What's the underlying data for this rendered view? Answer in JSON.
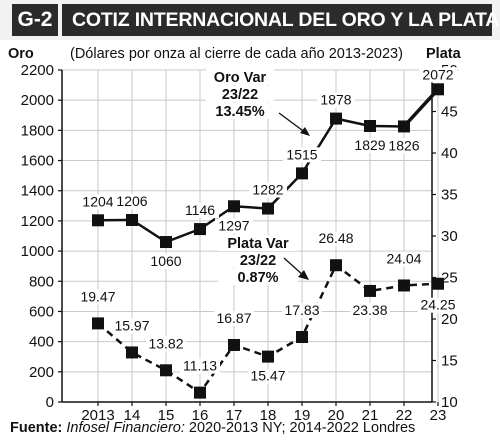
{
  "figure_id": "G-2",
  "title": "COTIZ INTERNACIONAL DEL ORO Y LA PLATA",
  "left_axis_title": "Oro",
  "subtitle": "(Dólares por onza al cierre de cada año 2013-2023)",
  "right_axis_title": "Plata",
  "source_label": "Fuente:",
  "source_publication": "Infosel Financiero:",
  "source_text": " 2020-2013 NY; 2014-2022 Londres",
  "chart_data": {
    "type": "line",
    "title": "COTIZ INTERNACIONAL DEL ORO Y LA PLATA",
    "categories": [
      "2013",
      "14",
      "15",
      "16",
      "17",
      "18",
      "19",
      "20",
      "21",
      "22",
      "23"
    ],
    "y_left": {
      "label": "Oro",
      "ylim": [
        0,
        2200
      ],
      "ticks": [
        0,
        200,
        400,
        600,
        800,
        1000,
        1200,
        1400,
        1600,
        1800,
        2000,
        2200
      ]
    },
    "y_right": {
      "label": "Plata",
      "ylim": [
        10,
        50
      ],
      "ticks": [
        10,
        15,
        20,
        25,
        30,
        35,
        40,
        45,
        50
      ]
    },
    "grid": true,
    "series": [
      {
        "name": "Oro",
        "axis": "left",
        "line_style": "solid",
        "values": [
          1204,
          1206,
          1060,
          1146,
          1297,
          1282,
          1515,
          1878,
          1829,
          1826,
          2072
        ],
        "labels": [
          "1204",
          "1206",
          "1060",
          "1146",
          "1297",
          "1282",
          "1515",
          "1878",
          "1829",
          "1826",
          "2072"
        ]
      },
      {
        "name": "Plata",
        "axis": "right",
        "line_style": "dashed",
        "values": [
          19.47,
          15.97,
          13.82,
          11.13,
          16.87,
          15.47,
          17.83,
          26.48,
          23.38,
          24.04,
          24.25
        ],
        "labels": [
          "19.47",
          "15.97",
          "13.82",
          "11.13",
          "16.87",
          "15.47",
          "17.83",
          "26.48",
          "23.38",
          "24.04",
          "24.25"
        ]
      }
    ],
    "annotations": [
      {
        "series": "Oro",
        "lines": [
          "Oro Var",
          "23/22",
          "13.45%"
        ]
      },
      {
        "series": "Plata",
        "lines": [
          "Plata Var",
          "23/22",
          "0.87%"
        ]
      }
    ]
  }
}
